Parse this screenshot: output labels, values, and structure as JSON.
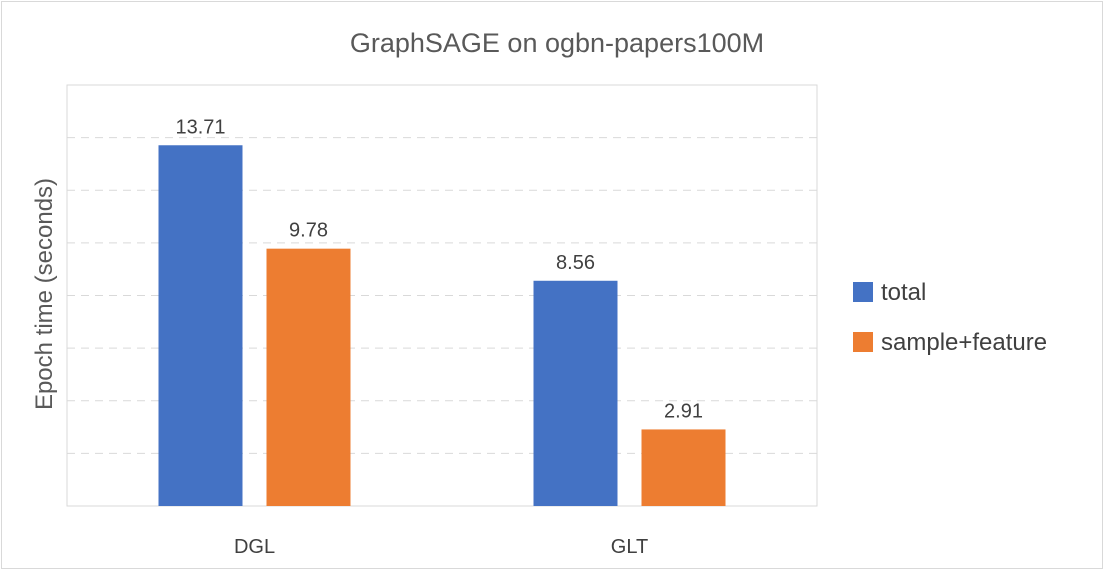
{
  "chart_data": {
    "type": "bar",
    "title": "GraphSAGE on ogbn-papers100M",
    "xlabel": "",
    "ylabel": "Epoch time (seconds)",
    "categories": [
      "DGL",
      "GLT"
    ],
    "series": [
      {
        "name": "total",
        "values": [
          13.71,
          8.56
        ],
        "color": "#4472C4"
      },
      {
        "name": "sample+feature",
        "values": [
          9.78,
          2.91
        ],
        "color": "#ED7D31"
      }
    ],
    "ylim": [
      0,
      16
    ],
    "ytick_step": 2,
    "show_y_tick_labels": false,
    "grid": true,
    "grid_style": "dashed",
    "data_labels": true,
    "legend": "right"
  }
}
